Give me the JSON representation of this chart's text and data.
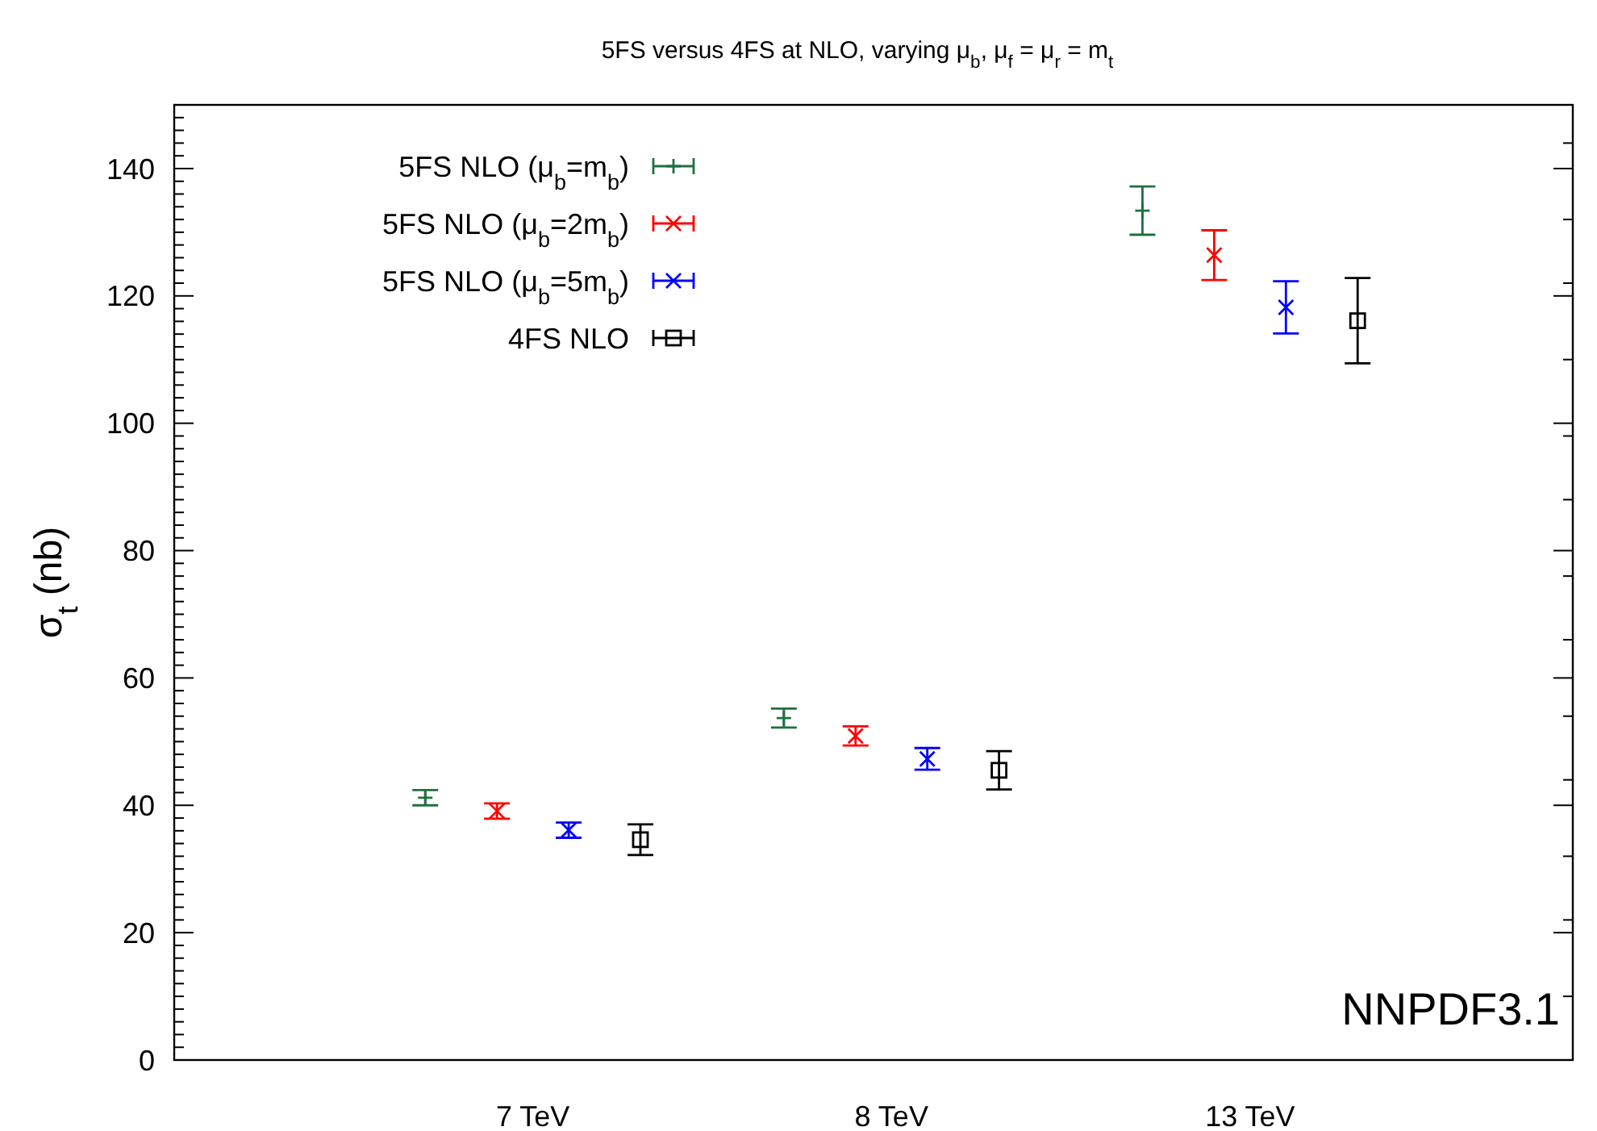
{
  "chart_data": {
    "type": "scatter",
    "title": "5FS versus 4FS at NLO, varying μ$_{b}$, μ$_{f}$ = μ$_{r}$ = m$_{t}$",
    "ylabel": "σ$_{t}$ (nb)",
    "categories": [
      "7 TeV",
      "8 TeV",
      "13 TeV"
    ],
    "ylim": [
      0,
      150
    ],
    "yticks": [
      0,
      20,
      40,
      60,
      80,
      100,
      120,
      140
    ],
    "legend": "top left",
    "grid": false,
    "annotations": [
      "NNPDF3.1"
    ],
    "series": [
      {
        "name": "5FS NLO (μ$_{b}$=m$_{b}$)",
        "color": "#1f7040",
        "marker": "plus",
        "values": [
          41.2,
          53.7,
          133.4
        ],
        "errors": [
          1.2,
          1.5,
          3.8
        ]
      },
      {
        "name": "5FS NLO (μ$_{b}$=2m$_{b}$)",
        "color": "#ff0000",
        "marker": "cross",
        "values": [
          39.1,
          50.9,
          126.4
        ],
        "errors": [
          1.2,
          1.5,
          3.9
        ]
      },
      {
        "name": "5FS NLO (μ$_{b}$=5m$_{b}$)",
        "color": "#0000ff",
        "marker": "cross",
        "values": [
          36.1,
          47.3,
          118.2
        ],
        "errors": [
          1.2,
          1.7,
          4.1
        ]
      },
      {
        "name": "4FS NLO",
        "color": "#000000",
        "marker": "square",
        "values": [
          34.6,
          45.5,
          116.1
        ],
        "errors": [
          2.4,
          3.0,
          6.7
        ]
      }
    ]
  }
}
